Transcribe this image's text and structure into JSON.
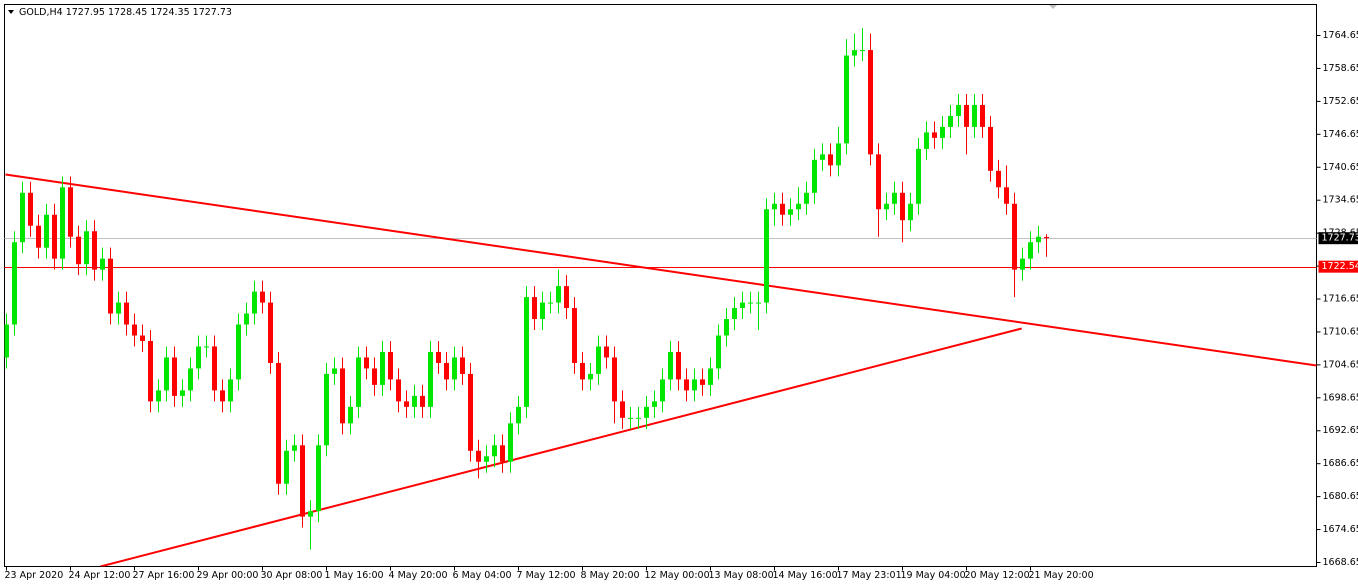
{
  "chart_data": {
    "type": "candlestick",
    "title": "GOLD,H4",
    "up_color": "#00e600",
    "down_color": "#ff0000",
    "categories": [
      "23 Apr 2020",
      null,
      null,
      null,
      null,
      null,
      null,
      null,
      "24 Apr 12:00",
      null,
      null,
      null,
      null,
      null,
      null,
      null,
      "27 Apr 16:00",
      null,
      null,
      null,
      null,
      null,
      null,
      null,
      "29 Apr 00:00",
      null,
      null,
      null,
      null,
      null,
      null,
      null,
      "30 Apr 08:00",
      null,
      null,
      null,
      null,
      null,
      null,
      null,
      "1 May 16:00",
      null,
      null,
      null,
      null,
      null,
      null,
      null,
      "4 May 20:00",
      null,
      null,
      null,
      null,
      null,
      null,
      null,
      "6 May 04:00",
      null,
      null,
      null,
      null,
      null,
      null,
      null,
      "7 May 12:00",
      null,
      null,
      null,
      null,
      null,
      null,
      null,
      "8 May 20:00",
      null,
      null,
      null,
      null,
      null,
      null,
      null,
      "12 May 00:00",
      null,
      null,
      null,
      null,
      null,
      null,
      null,
      "13 May 08:00",
      null,
      null,
      null,
      null,
      null,
      null,
      null,
      "14 May 16:00",
      null,
      null,
      null,
      null,
      null,
      null,
      null,
      "17 May 23:01",
      null,
      null,
      null,
      null,
      null,
      null,
      null,
      "19 May 04:00",
      null,
      null,
      null,
      null,
      null,
      null,
      null,
      "20 May 12:00",
      null,
      null,
      null,
      null,
      null,
      null,
      null,
      "21 May 20:00",
      null,
      null
    ],
    "open": [
      1706,
      1712,
      1727,
      1736,
      1730,
      1726,
      1732,
      1724,
      1737,
      1728,
      1723,
      1729,
      1722,
      1724,
      1714,
      1716,
      1712,
      1710,
      1709,
      1698,
      1700,
      1706,
      1699,
      1700,
      1704,
      1708,
      1708,
      1700,
      1698,
      1702,
      1712,
      1714,
      1718,
      1716,
      1705,
      1683,
      1689,
      1690,
      1677,
      1678,
      1690,
      1703,
      1704,
      1694,
      1697,
      1706,
      1704,
      1701,
      1707,
      1702,
      1698,
      1697,
      1699,
      1697,
      1707,
      1705,
      1702,
      1706,
      1703,
      1689,
      1687,
      1688,
      1690,
      1687,
      1694,
      1697,
      1717,
      1713,
      1716,
      1716,
      1719,
      1715,
      1705,
      1702,
      1703,
      1708,
      1706,
      1698,
      1695,
      1695,
      1695,
      1697,
      1698,
      1702,
      1707,
      1702,
      1700,
      1702,
      1701,
      1704,
      1710,
      1713,
      1715,
      1716,
      1716,
      1716,
      1733,
      1734,
      1732,
      1733,
      1734,
      1736,
      1742,
      1743,
      1741,
      1745,
      1761,
      1762,
      1762,
      1743,
      1733,
      1734,
      1736,
      1731,
      1734,
      1744,
      1747,
      1746,
      1748,
      1750,
      1752,
      1748,
      1752,
      1748,
      1740,
      1737,
      1734,
      1722,
      1724,
      1727,
      1727.95
    ],
    "high": [
      1714,
      1729,
      1738,
      1738,
      1732,
      1734,
      1734,
      1739,
      1739,
      1730,
      1731,
      1731,
      1726,
      1726,
      1718,
      1718,
      1714,
      1712,
      1711,
      1702,
      1708,
      1708,
      1702,
      1706,
      1710,
      1710,
      1710,
      1702,
      1704,
      1714,
      1716,
      1720,
      1720,
      1718,
      1707,
      1691,
      1692,
      1692,
      1680,
      1692,
      1705,
      1706,
      1706,
      1699,
      1708,
      1708,
      1706,
      1709,
      1709,
      1704,
      1700,
      1701,
      1701,
      1709,
      1709,
      1707,
      1708,
      1708,
      1705,
      1691,
      1690,
      1692,
      1692,
      1696,
      1699,
      1719,
      1719,
      1718,
      1718,
      1722,
      1721,
      1717,
      1707,
      1705,
      1710,
      1710,
      1708,
      1700,
      1697,
      1697,
      1699,
      1700,
      1704,
      1709,
      1709,
      1704,
      1704,
      1704,
      1706,
      1712,
      1715,
      1717,
      1718,
      1718,
      1718,
      1735,
      1736,
      1736,
      1735,
      1737,
      1738,
      1744,
      1745,
      1745,
      1748,
      1764,
      1765,
      1766,
      1765,
      1745,
      1736,
      1738,
      1738,
      1736,
      1746,
      1749,
      1749,
      1750,
      1752,
      1754,
      1754,
      1754,
      1754,
      1750,
      1742,
      1741,
      1736,
      1726,
      1729,
      1730,
      1728.45
    ],
    "low": [
      1704,
      1710,
      1725,
      1728,
      1724,
      1724,
      1722,
      1722,
      1726,
      1721,
      1721,
      1720,
      1720,
      1712,
      1712,
      1710,
      1708,
      1707,
      1696,
      1696,
      1698,
      1697,
      1697,
      1698,
      1702,
      1706,
      1698,
      1696,
      1696,
      1700,
      1710,
      1712,
      1714,
      1703,
      1681,
      1681,
      1687,
      1675,
      1671,
      1676,
      1688,
      1701,
      1692,
      1692,
      1695,
      1702,
      1699,
      1699,
      1700,
      1696,
      1695,
      1695,
      1695,
      1695,
      1703,
      1700,
      1700,
      1701,
      1687,
      1684,
      1685,
      1686,
      1685,
      1685,
      1692,
      1695,
      1711,
      1711,
      1714,
      1714,
      1713,
      1703,
      1700,
      1700,
      1701,
      1704,
      1694,
      1693,
      1693,
      1693,
      1693,
      1695,
      1696,
      1700,
      1700,
      1698,
      1698,
      1699,
      1699,
      1702,
      1708,
      1711,
      1713,
      1714,
      1711,
      1714,
      1730,
      1730,
      1730,
      1731,
      1732,
      1734,
      1740,
      1739,
      1739,
      1743,
      1759,
      1760,
      1741,
      1728,
      1731,
      1732,
      1727,
      1729,
      1732,
      1742,
      1744,
      1744,
      1746,
      1748,
      1743,
      1746,
      1746,
      1738,
      1735,
      1732,
      1717,
      1720,
      1722,
      1725,
      1724.35
    ],
    "close": [
      1712,
      1727,
      1736,
      1730,
      1726,
      1732,
      1724,
      1737,
      1728,
      1723,
      1729,
      1722,
      1724,
      1714,
      1716,
      1712,
      1710,
      1709,
      1698,
      1700,
      1706,
      1699,
      1700,
      1704,
      1708,
      1708,
      1700,
      1698,
      1702,
      1712,
      1714,
      1718,
      1716,
      1705,
      1683,
      1689,
      1690,
      1677,
      1678,
      1690,
      1703,
      1704,
      1694,
      1697,
      1706,
      1704,
      1701,
      1707,
      1702,
      1698,
      1697,
      1699,
      1697,
      1707,
      1705,
      1702,
      1706,
      1703,
      1689,
      1687,
      1688,
      1690,
      1687,
      1694,
      1697,
      1717,
      1713,
      1716,
      1716,
      1719,
      1715,
      1705,
      1702,
      1703,
      1708,
      1706,
      1698,
      1695,
      1695,
      1695,
      1697,
      1698,
      1702,
      1707,
      1702,
      1700,
      1702,
      1701,
      1704,
      1710,
      1713,
      1715,
      1716,
      1716,
      1716,
      1733,
      1734,
      1732,
      1733,
      1734,
      1736,
      1742,
      1743,
      1741,
      1745,
      1761,
      1762,
      1762,
      1743,
      1733,
      1734,
      1736,
      1731,
      1734,
      1744,
      1747,
      1746,
      1748,
      1750,
      1752,
      1748,
      1752,
      1748,
      1740,
      1737,
      1734,
      1722,
      1724,
      1727,
      1728,
      1727.73
    ],
    "ylim": [
      1667.92,
      1770.3
    ],
    "yticks": [
      1764.65,
      1758.65,
      1752.65,
      1746.65,
      1740.65,
      1734.65,
      1728.65,
      1722.65,
      1716.65,
      1710.65,
      1704.65,
      1698.65,
      1692.65,
      1686.65,
      1680.65,
      1674.65,
      1668.65
    ],
    "hlines": [
      {
        "value": 1727.73,
        "color": "#c0c0c0",
        "label_bg": "#000000"
      },
      {
        "value": 1722.54,
        "color": "#ff0000",
        "label_bg": "#ff0000"
      }
    ],
    "trendlines": [
      {
        "x": [
          -0.125,
          163.75
        ],
        "y": [
          1739.33,
          1704.54
        ],
        "color": "#ff0000"
      },
      {
        "x": [
          11.75,
          126.9
        ],
        "y": [
          1667.92,
          1711.28
        ],
        "color": "#ff0000"
      }
    ]
  }
}
